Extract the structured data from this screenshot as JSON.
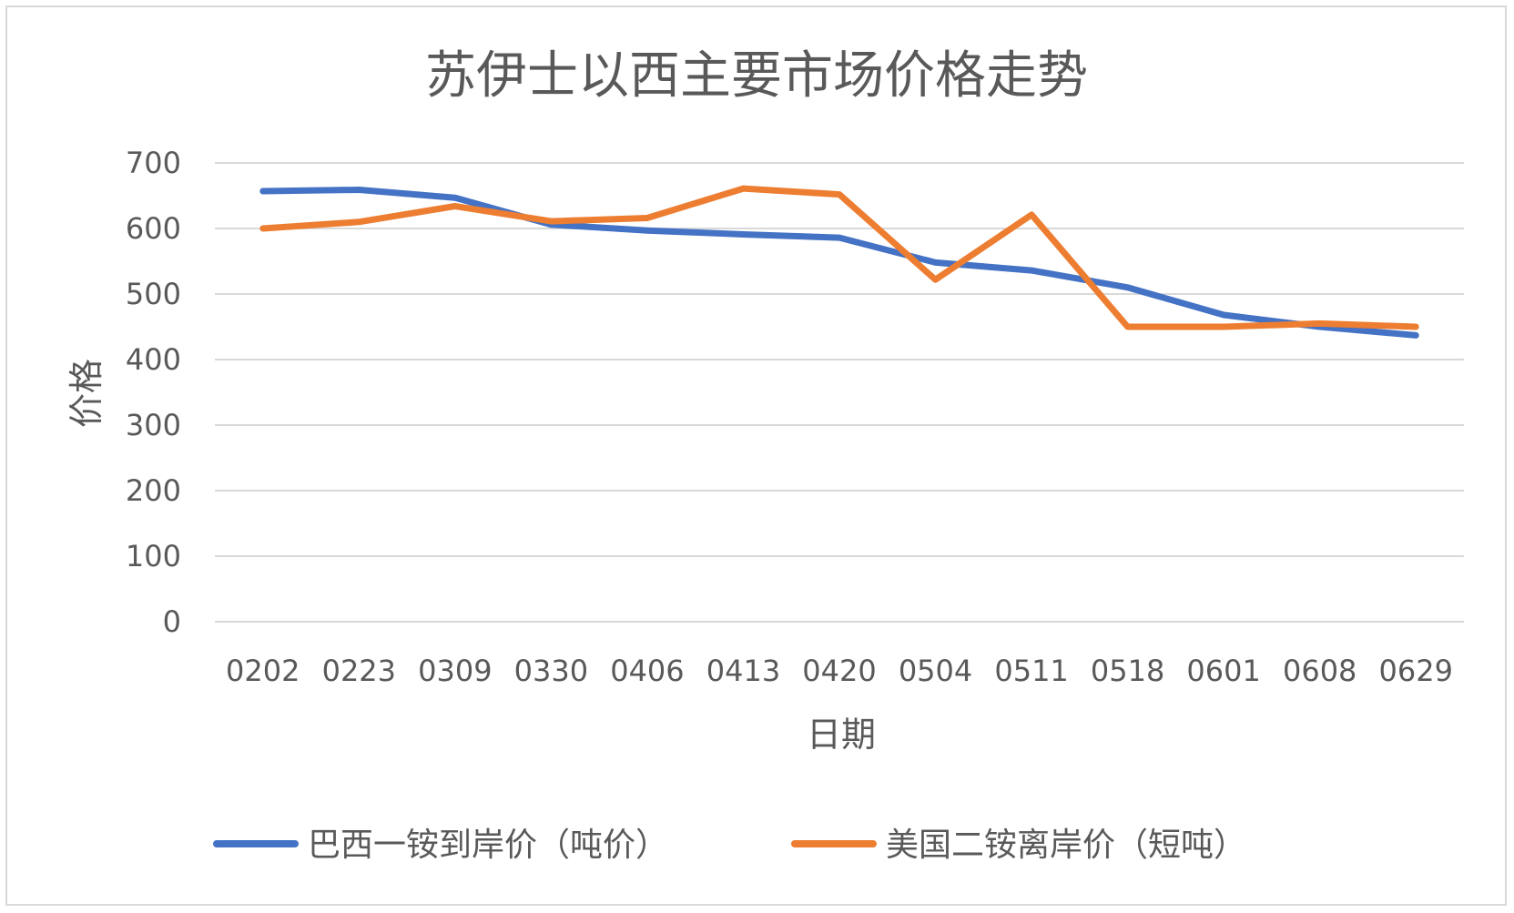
{
  "chart_data": {
    "type": "line",
    "title": "苏伊士以西主要市场价格走势",
    "xlabel": "日期",
    "ylabel": "价格",
    "ylim": [
      0,
      700
    ],
    "y_ticks": [
      "0",
      "100",
      "200",
      "300",
      "400",
      "500",
      "600",
      "700"
    ],
    "grid": true,
    "legend_position": "bottom",
    "categories": [
      "0202",
      "0223",
      "0309",
      "0330",
      "0406",
      "0413",
      "0420",
      "0504",
      "0511",
      "0518",
      "0601",
      "0608",
      "0629"
    ],
    "series": [
      {
        "name": "巴西一铵到岸价（吨价）",
        "color": "#4472C4",
        "values": [
          657,
          659,
          647,
          606,
          597,
          591,
          586,
          548,
          536,
          510,
          468,
          450,
          437
        ]
      },
      {
        "name": "美国二铵离岸价（短吨）",
        "color": "#ED7D31",
        "values": [
          600,
          610,
          634,
          611,
          616,
          661,
          652,
          522,
          621,
          450,
          450,
          455,
          450
        ]
      }
    ]
  }
}
